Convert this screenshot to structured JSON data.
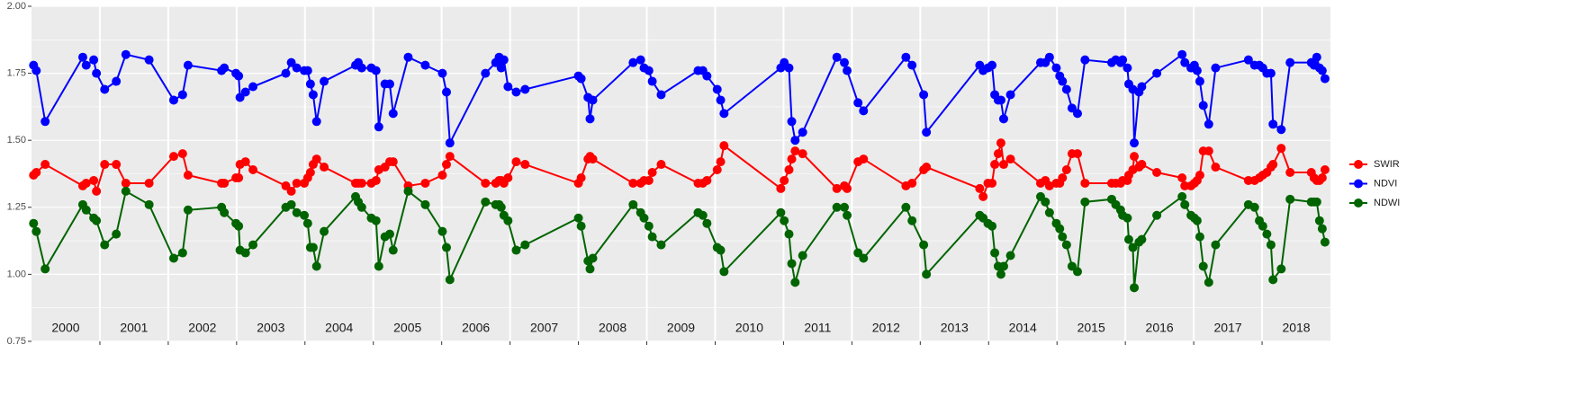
{
  "chart_data": {
    "type": "line",
    "panels": [
      "2000",
      "2001",
      "2002",
      "2003",
      "2004",
      "2005",
      "2006",
      "2007",
      "2008",
      "2009",
      "2010",
      "2011",
      "2012",
      "2013",
      "2014",
      "2015",
      "2016",
      "2017",
      "2018"
    ],
    "x": [
      2000.03,
      2000.07,
      2000.2,
      2000.75,
      2000.8,
      2000.91,
      2000.95,
      2001.07,
      2001.24,
      2001.38,
      2001.72,
      2002.08,
      2002.21,
      2002.29,
      2002.78,
      2002.82,
      2002.99,
      2003.03,
      2003.05,
      2003.13,
      2003.24,
      2003.72,
      2003.8,
      2003.88,
      2003.99,
      2004.04,
      2004.08,
      2004.12,
      2004.17,
      2004.28,
      2004.74,
      2004.78,
      2004.83,
      2004.97,
      2005.04,
      2005.08,
      2005.17,
      2005.24,
      2005.29,
      2005.51,
      2005.76,
      2006.01,
      2006.07,
      2006.12,
      2006.64,
      2006.79,
      2006.84,
      2006.87,
      2006.91,
      2006.97,
      2007.09,
      2007.22,
      2008.0,
      2008.04,
      2008.14,
      2008.17,
      2008.21,
      2008.8,
      2008.91,
      2008.96,
      2009.03,
      2009.08,
      2009.21,
      2009.75,
      2009.82,
      2009.88,
      2010.03,
      2010.08,
      2010.13,
      2010.96,
      2011.01,
      2011.08,
      2011.12,
      2011.17,
      2011.28,
      2011.78,
      2011.89,
      2011.93,
      2012.09,
      2012.17,
      2012.79,
      2012.88,
      2013.05,
      2013.09,
      2013.87,
      2013.92,
      2013.99,
      2014.05,
      2014.09,
      2014.14,
      2014.18,
      2014.22,
      2014.32,
      2014.76,
      2014.83,
      2014.89,
      2014.99,
      2015.04,
      2015.08,
      2015.14,
      2015.22,
      2015.3,
      2015.41,
      2015.8,
      2015.86,
      2015.93,
      2015.96,
      2016.03,
      2016.05,
      2016.11,
      2016.13,
      2016.2,
      2016.24,
      2016.46,
      2016.83,
      2016.87,
      2016.96,
      2017.01,
      2017.05,
      2017.09,
      2017.14,
      2017.22,
      2017.32,
      2017.8,
      2017.89,
      2017.96,
      2018.01,
      2018.07,
      2018.13,
      2018.16,
      2018.28,
      2018.41,
      2018.72,
      2018.76,
      2018.8,
      2018.84,
      2018.88,
      2018.92
    ],
    "series": [
      {
        "name": "SWIR",
        "color": "#ff0000",
        "values": [
          1.37,
          1.38,
          1.41,
          1.33,
          1.34,
          1.35,
          1.31,
          1.41,
          1.41,
          1.34,
          1.34,
          1.44,
          1.45,
          1.37,
          1.34,
          1.34,
          1.36,
          1.36,
          1.41,
          1.42,
          1.39,
          1.33,
          1.31,
          1.34,
          1.34,
          1.36,
          1.38,
          1.41,
          1.43,
          1.4,
          1.34,
          1.34,
          1.34,
          1.34,
          1.35,
          1.39,
          1.4,
          1.42,
          1.42,
          1.33,
          1.34,
          1.37,
          1.41,
          1.44,
          1.34,
          1.34,
          1.35,
          1.35,
          1.34,
          1.36,
          1.42,
          1.41,
          1.34,
          1.36,
          1.43,
          1.44,
          1.43,
          1.34,
          1.34,
          1.35,
          1.35,
          1.38,
          1.41,
          1.34,
          1.34,
          1.35,
          1.39,
          1.42,
          1.48,
          1.32,
          1.35,
          1.39,
          1.43,
          1.46,
          1.45,
          1.32,
          1.33,
          1.32,
          1.42,
          1.43,
          1.33,
          1.34,
          1.39,
          1.4,
          1.32,
          1.29,
          1.34,
          1.34,
          1.41,
          1.45,
          1.49,
          1.41,
          1.43,
          1.34,
          1.35,
          1.33,
          1.34,
          1.34,
          1.36,
          1.39,
          1.45,
          1.45,
          1.34,
          1.34,
          1.34,
          1.34,
          1.35,
          1.35,
          1.37,
          1.39,
          1.44,
          1.4,
          1.41,
          1.38,
          1.36,
          1.33,
          1.33,
          1.34,
          1.35,
          1.37,
          1.46,
          1.46,
          1.4,
          1.35,
          1.35,
          1.36,
          1.37,
          1.38,
          1.4,
          1.41,
          1.47,
          1.38,
          1.38,
          1.36,
          1.35,
          1.35,
          1.36,
          1.39
        ]
      },
      {
        "name": "NDVI",
        "color": "#0000ff",
        "values": [
          1.78,
          1.76,
          1.57,
          1.81,
          1.78,
          1.8,
          1.75,
          1.69,
          1.72,
          1.82,
          1.8,
          1.65,
          1.67,
          1.78,
          1.76,
          1.77,
          1.75,
          1.74,
          1.66,
          1.68,
          1.7,
          1.75,
          1.79,
          1.77,
          1.76,
          1.76,
          1.71,
          1.67,
          1.57,
          1.72,
          1.78,
          1.79,
          1.77,
          1.77,
          1.76,
          1.55,
          1.71,
          1.71,
          1.6,
          1.81,
          1.78,
          1.75,
          1.68,
          1.49,
          1.75,
          1.79,
          1.81,
          1.77,
          1.8,
          1.7,
          1.68,
          1.69,
          1.74,
          1.73,
          1.66,
          1.58,
          1.65,
          1.79,
          1.8,
          1.77,
          1.76,
          1.72,
          1.67,
          1.76,
          1.76,
          1.74,
          1.69,
          1.65,
          1.6,
          1.77,
          1.79,
          1.77,
          1.57,
          1.5,
          1.53,
          1.81,
          1.79,
          1.76,
          1.64,
          1.61,
          1.81,
          1.78,
          1.67,
          1.53,
          1.78,
          1.76,
          1.77,
          1.78,
          1.67,
          1.65,
          1.65,
          1.58,
          1.67,
          1.79,
          1.79,
          1.81,
          1.77,
          1.74,
          1.72,
          1.69,
          1.62,
          1.6,
          1.8,
          1.79,
          1.8,
          1.79,
          1.8,
          1.77,
          1.71,
          1.69,
          1.49,
          1.68,
          1.7,
          1.75,
          1.82,
          1.79,
          1.77,
          1.78,
          1.76,
          1.72,
          1.63,
          1.56,
          1.77,
          1.8,
          1.78,
          1.78,
          1.77,
          1.75,
          1.75,
          1.56,
          1.54,
          1.79,
          1.79,
          1.78,
          1.81,
          1.77,
          1.76,
          1.73
        ]
      },
      {
        "name": "NDWI",
        "color": "#006400",
        "values": [
          1.19,
          1.16,
          1.02,
          1.26,
          1.24,
          1.21,
          1.2,
          1.11,
          1.15,
          1.31,
          1.26,
          1.06,
          1.08,
          1.24,
          1.25,
          1.23,
          1.19,
          1.18,
          1.09,
          1.08,
          1.11,
          1.25,
          1.26,
          1.23,
          1.22,
          1.19,
          1.1,
          1.1,
          1.03,
          1.16,
          1.29,
          1.27,
          1.25,
          1.21,
          1.2,
          1.03,
          1.14,
          1.15,
          1.09,
          1.31,
          1.26,
          1.16,
          1.1,
          0.98,
          1.27,
          1.26,
          1.26,
          1.25,
          1.22,
          1.2,
          1.09,
          1.11,
          1.21,
          1.18,
          1.05,
          1.02,
          1.06,
          1.26,
          1.23,
          1.21,
          1.18,
          1.14,
          1.11,
          1.23,
          1.22,
          1.19,
          1.1,
          1.09,
          1.01,
          1.23,
          1.2,
          1.15,
          1.04,
          0.97,
          1.07,
          1.25,
          1.25,
          1.22,
          1.08,
          1.06,
          1.25,
          1.2,
          1.11,
          1.0,
          1.22,
          1.21,
          1.19,
          1.18,
          1.08,
          1.03,
          1.0,
          1.03,
          1.07,
          1.29,
          1.27,
          1.23,
          1.19,
          1.17,
          1.14,
          1.11,
          1.03,
          1.01,
          1.27,
          1.28,
          1.26,
          1.24,
          1.22,
          1.21,
          1.13,
          1.1,
          0.95,
          1.12,
          1.13,
          1.22,
          1.29,
          1.26,
          1.22,
          1.21,
          1.2,
          1.14,
          1.03,
          0.97,
          1.11,
          1.26,
          1.25,
          1.2,
          1.18,
          1.15,
          1.11,
          0.98,
          1.02,
          1.28,
          1.27,
          1.27,
          1.27,
          1.2,
          1.17,
          1.12
        ]
      }
    ],
    "xlim": [
      2000,
      2019
    ],
    "ylim": [
      0.75,
      2.0
    ],
    "yticks": [
      {
        "value": 0.75,
        "label": "0.75"
      },
      {
        "value": 1.0,
        "label": "1.00"
      },
      {
        "value": 1.25,
        "label": "1.25"
      },
      {
        "value": 1.5,
        "label": "1.50"
      },
      {
        "value": 1.75,
        "label": "1.75"
      },
      {
        "value": 2.0,
        "label": "2.00"
      }
    ],
    "grid": true,
    "legend": "right"
  }
}
